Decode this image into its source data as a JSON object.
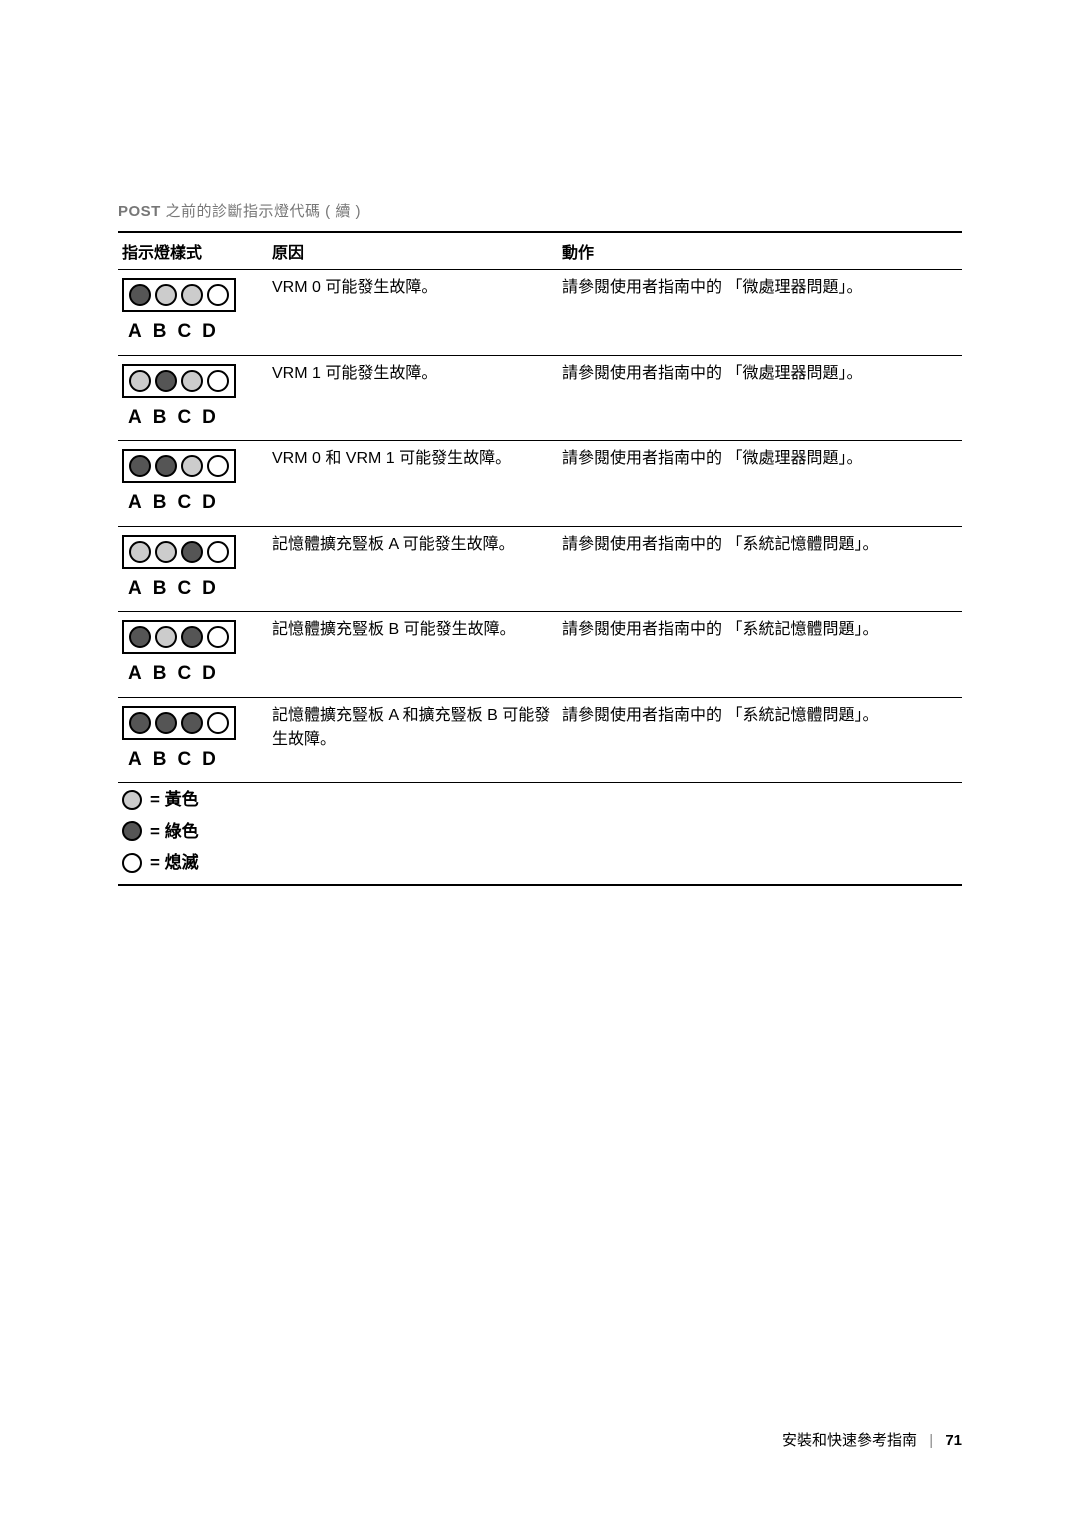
{
  "title": {
    "prefix": "POST",
    "text": "之前的診斷指示燈代碼 ( 續 )"
  },
  "headers": {
    "pattern": "指示燈樣式",
    "cause": "原因",
    "action": "動作"
  },
  "abcd": "ABCD",
  "rows": [
    {
      "pattern": [
        "green",
        "yellow",
        "yellow",
        "off"
      ],
      "cause": "VRM 0 可能發生故障。",
      "action": "請參閱使用者指南中的 「微處理器問題」。"
    },
    {
      "pattern": [
        "yellow",
        "green",
        "yellow",
        "off"
      ],
      "cause": "VRM 1 可能發生故障。",
      "action": "請參閱使用者指南中的 「微處理器問題」。"
    },
    {
      "pattern": [
        "green",
        "green",
        "yellow",
        "off"
      ],
      "cause": "VRM 0 和 VRM 1 可能發生故障。",
      "action": "請參閱使用者指南中的 「微處理器問題」。"
    },
    {
      "pattern": [
        "yellow",
        "yellow",
        "green",
        "off"
      ],
      "cause": "記憶體擴充豎板 A 可能發生故障。",
      "action": "請參閱使用者指南中的 「系統記憶體問題」。"
    },
    {
      "pattern": [
        "green",
        "yellow",
        "green",
        "off"
      ],
      "cause": "記憶體擴充豎板 B 可能發生故障。",
      "action": "請參閱使用者指南中的 「系統記憶體問題」。"
    },
    {
      "pattern": [
        "green",
        "green",
        "green",
        "off"
      ],
      "cause": "記憶體擴充豎板 A 和擴充豎板 B 可能發生故障。",
      "action": "請參閱使用者指南中的 「系統記憶體問題」。"
    }
  ],
  "legend": {
    "yellow": "= 黃色",
    "green": "= 綠色",
    "off": "= 熄滅"
  },
  "footer": {
    "text": "安裝和快速參考指南",
    "page": "71"
  }
}
